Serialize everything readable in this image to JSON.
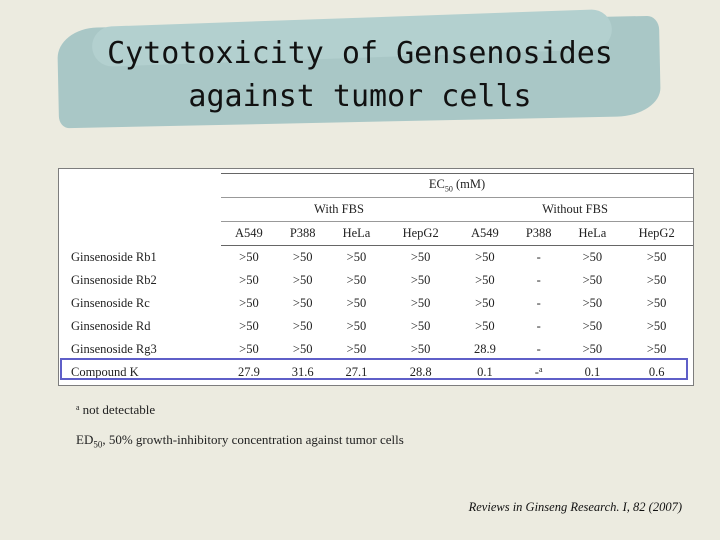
{
  "slide": {
    "title_line1": "Cytotoxicity of Gensenosides",
    "title_line2": "against tumor cells"
  },
  "table": {
    "measure": "EC",
    "measure_sub": "50",
    "measure_unit": "(mM)",
    "groups": [
      "With FBS",
      "Without FBS"
    ],
    "columns": [
      "A549",
      "P388",
      "HeLa",
      "HepG2",
      "A549",
      "P388",
      "HeLa",
      "HepG2"
    ],
    "rows": [
      {
        "name": "Ginsenoside Rb1",
        "values": [
          ">50",
          ">50",
          ">50",
          ">50",
          ">50",
          "-",
          ">50",
          ">50"
        ]
      },
      {
        "name": "Ginsenoside Rb2",
        "values": [
          ">50",
          ">50",
          ">50",
          ">50",
          ">50",
          "-",
          ">50",
          ">50"
        ]
      },
      {
        "name": "Ginsenoside Rc",
        "values": [
          ">50",
          ">50",
          ">50",
          ">50",
          ">50",
          "-",
          ">50",
          ">50"
        ]
      },
      {
        "name": "Ginsenoside Rd",
        "values": [
          ">50",
          ">50",
          ">50",
          ">50",
          ">50",
          "-",
          ">50",
          ">50"
        ]
      },
      {
        "name": "Ginsenoside Rg3",
        "values": [
          ">50",
          ">50",
          ">50",
          ">50",
          "28.9",
          "-",
          ">50",
          ">50"
        ]
      },
      {
        "name": "Compound K",
        "values": [
          "27.9",
          "31.6",
          "27.1",
          "28.8",
          "0.1",
          "-",
          "0.1",
          "0.6"
        ],
        "marker_col": 5,
        "marker": "a"
      }
    ]
  },
  "footnotes": {
    "a_marker": "a",
    "a_text": "not detectable",
    "ed_prefix": "ED",
    "ed_sub": "50",
    "ed_text": ", 50% growth-inhibitory concentration against tumor cells"
  },
  "citation": "Reviews in Ginseng Research. I, 82 (2007)"
}
